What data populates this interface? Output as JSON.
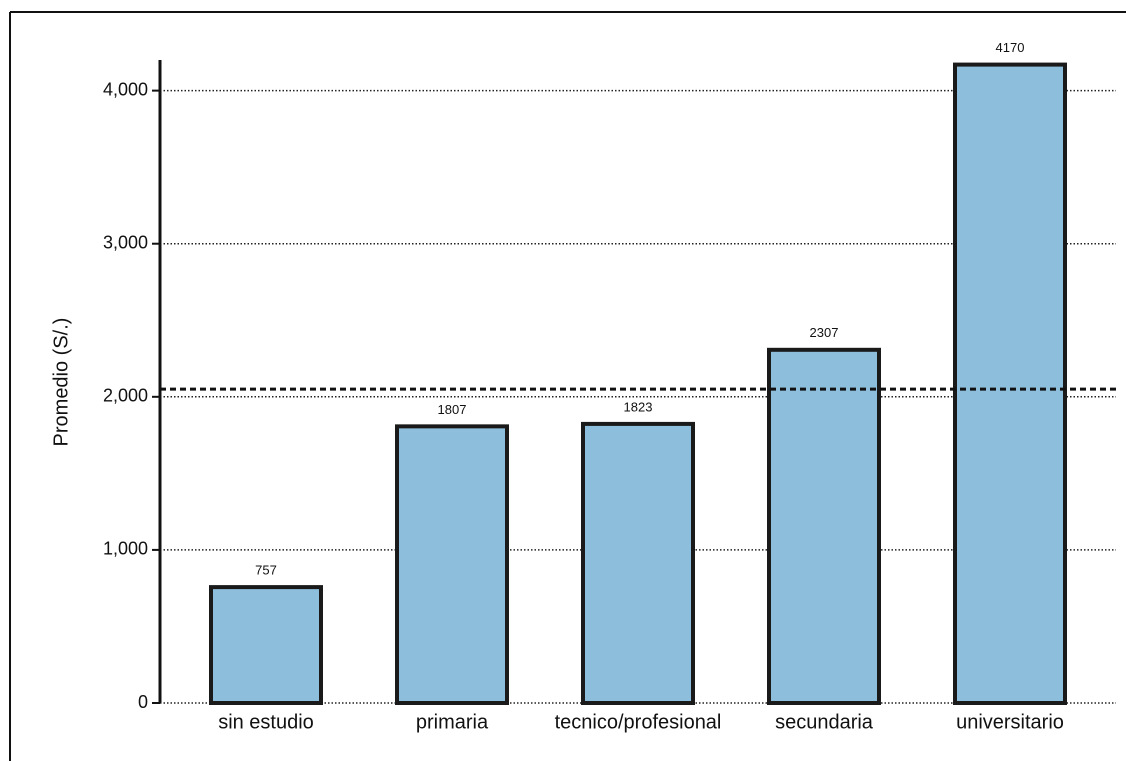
{
  "chart_data": {
    "type": "bar",
    "y_label": "Promedio (S/.)",
    "categories": [
      "sin estudio",
      "primaria",
      "tecnico/profesional",
      "secundaria",
      "universitario"
    ],
    "values": [
      757,
      1807,
      1823,
      2307,
      4170
    ],
    "color": "#8dbedc",
    "ylim": [
      0,
      4200
    ],
    "yticks": [
      0,
      {
        "value": 1000,
        "label": "1,000"
      },
      {
        "value": 2000,
        "label": "2,000"
      },
      {
        "value": 3000,
        "label": "3,000"
      },
      {
        "value": 4000,
        "label": "4,000"
      }
    ],
    "grid": true,
    "reference_line": 2050
  }
}
